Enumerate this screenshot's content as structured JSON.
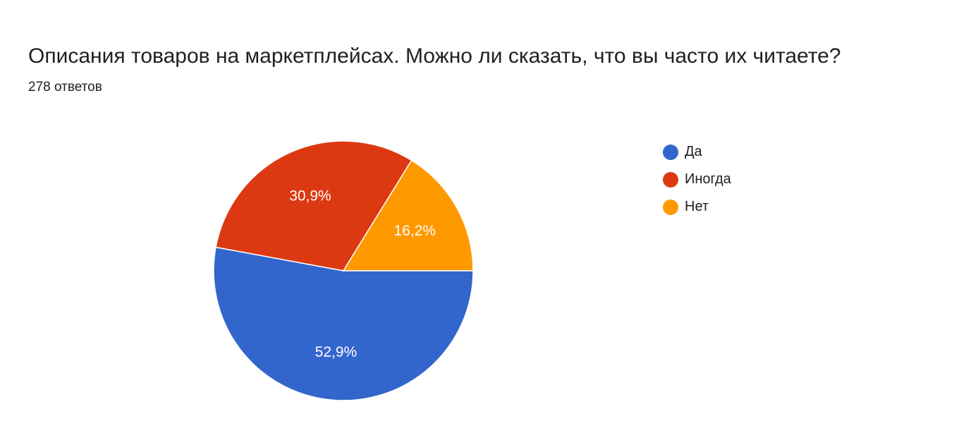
{
  "title": "Описания товаров на маркетплейсах. Можно ли сказать, что вы часто их читаете?",
  "subtitle": "278 ответов",
  "chart_data": {
    "type": "pie",
    "legend_position": "right",
    "slices": [
      {
        "label": "Да",
        "value": 52.9,
        "value_label": "52,9%",
        "color": "#3366cc"
      },
      {
        "label": "Иногда",
        "value": 30.9,
        "value_label": "30,9%",
        "color": "#dc3912"
      },
      {
        "label": "Нет",
        "value": 16.2,
        "value_label": "16,2%",
        "color": "#ff9900"
      }
    ]
  }
}
